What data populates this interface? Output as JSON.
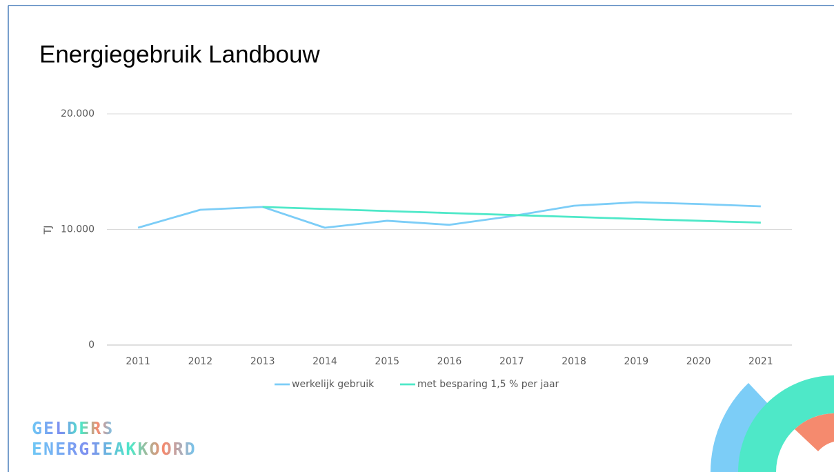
{
  "chart_data": {
    "type": "line",
    "title": "Energiegebruik Landbouw",
    "y_label": "TJ",
    "categories": [
      "2011",
      "2012",
      "2013",
      "2014",
      "2015",
      "2016",
      "2017",
      "2018",
      "2019",
      "2020",
      "2021"
    ],
    "series": [
      {
        "name": "werkelijk gebruik",
        "color": "#7ccdf7",
        "values": [
          10150,
          11700,
          11950,
          10150,
          10750,
          10400,
          11150,
          12050,
          12350,
          12200,
          12000
        ]
      },
      {
        "name": "met besparing 1,5 % per jaar",
        "color": "#4ee8c8",
        "values": [
          null,
          null,
          11950,
          11770,
          11590,
          11420,
          11250,
          11080,
          10910,
          10750,
          10590
        ]
      }
    ],
    "ylim": [
      0,
      20000
    ],
    "yticks": [
      0,
      {
        "value": 10000,
        "label": "10.000"
      },
      {
        "value": 20000,
        "label": "20.000"
      }
    ],
    "grid": true,
    "legend": "bottom"
  },
  "logo": {
    "line1": "GELDERS",
    "line2": "ENERGIEAKKOORD"
  }
}
